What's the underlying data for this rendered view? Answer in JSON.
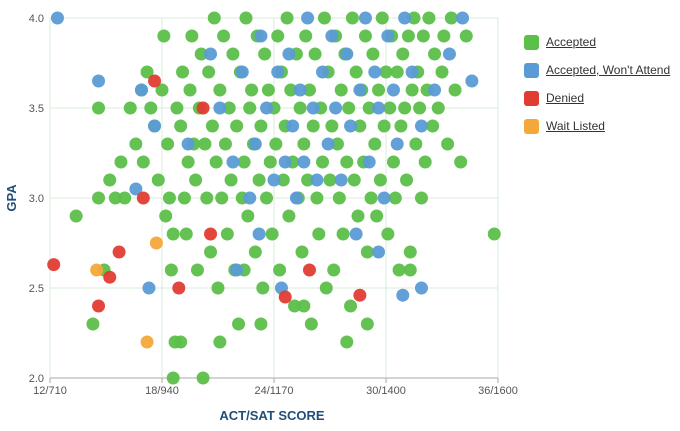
{
  "chart_data": {
    "type": "scatter",
    "xlabel": "ACT/SAT SCORE",
    "ylabel": "GPA",
    "x_ticks": [
      "12/710",
      "18/940",
      "24/1170",
      "30/1400",
      "36/1600"
    ],
    "x_tick_values": [
      12,
      18,
      24,
      30,
      36
    ],
    "xlim": [
      12,
      36
    ],
    "y_ticks": [
      "2.0",
      "2.5",
      "3.0",
      "3.5",
      "4.0"
    ],
    "y_tick_values": [
      2.0,
      2.5,
      3.0,
      3.5,
      4.0
    ],
    "ylim": [
      2.0,
      4.0
    ],
    "grid": true,
    "legend_position": "right",
    "series": [
      {
        "name": "Accepted",
        "color": "#5cbf4a",
        "points": [
          [
            13.4,
            2.9
          ],
          [
            14.3,
            2.3
          ],
          [
            14.6,
            3.5
          ],
          [
            14.6,
            3.0
          ],
          [
            14.9,
            2.6
          ],
          [
            15.2,
            3.1
          ],
          [
            15.5,
            3.0
          ],
          [
            15.8,
            3.2
          ],
          [
            16.0,
            3.0
          ],
          [
            16.3,
            3.5
          ],
          [
            16.6,
            3.3
          ],
          [
            16.9,
            3.6
          ],
          [
            17.0,
            3.2
          ],
          [
            17.2,
            3.7
          ],
          [
            17.4,
            3.5
          ],
          [
            17.6,
            3.4
          ],
          [
            17.8,
            3.1
          ],
          [
            18.0,
            3.6
          ],
          [
            18.1,
            3.9
          ],
          [
            18.2,
            2.9
          ],
          [
            18.3,
            3.3
          ],
          [
            18.4,
            3.0
          ],
          [
            18.5,
            2.6
          ],
          [
            18.6,
            2.8
          ],
          [
            18.7,
            2.2
          ],
          [
            18.8,
            3.5
          ],
          [
            19.0,
            3.4
          ],
          [
            19.1,
            3.7
          ],
          [
            19.2,
            3.0
          ],
          [
            19.3,
            2.8
          ],
          [
            19.4,
            3.2
          ],
          [
            19.5,
            3.6
          ],
          [
            19.6,
            3.9
          ],
          [
            19.7,
            3.3
          ],
          [
            19.8,
            3.1
          ],
          [
            19.9,
            2.6
          ],
          [
            20.0,
            3.5
          ],
          [
            20.1,
            3.8
          ],
          [
            20.2,
            2.0
          ],
          [
            20.3,
            3.3
          ],
          [
            20.4,
            3.0
          ],
          [
            20.5,
            3.7
          ],
          [
            20.6,
            2.7
          ],
          [
            20.7,
            3.4
          ],
          [
            20.8,
            4.0
          ],
          [
            20.9,
            3.2
          ],
          [
            21.0,
            2.5
          ],
          [
            21.1,
            3.6
          ],
          [
            21.2,
            3.0
          ],
          [
            21.3,
            3.9
          ],
          [
            21.4,
            3.3
          ],
          [
            21.5,
            2.8
          ],
          [
            21.6,
            3.5
          ],
          [
            21.7,
            3.1
          ],
          [
            21.8,
            3.8
          ],
          [
            21.9,
            2.6
          ],
          [
            22.0,
            3.4
          ],
          [
            22.1,
            2.3
          ],
          [
            22.2,
            3.7
          ],
          [
            22.3,
            3.0
          ],
          [
            22.4,
            3.2
          ],
          [
            22.5,
            4.0
          ],
          [
            22.6,
            2.9
          ],
          [
            22.7,
            3.5
          ],
          [
            22.8,
            3.6
          ],
          [
            22.9,
            3.3
          ],
          [
            23.0,
            2.7
          ],
          [
            23.1,
            3.9
          ],
          [
            23.2,
            3.1
          ],
          [
            23.3,
            3.4
          ],
          [
            23.4,
            2.5
          ],
          [
            23.5,
            3.8
          ],
          [
            23.6,
            3.0
          ],
          [
            23.7,
            3.6
          ],
          [
            23.8,
            3.2
          ],
          [
            23.9,
            2.8
          ],
          [
            24.0,
            3.5
          ],
          [
            24.1,
            3.3
          ],
          [
            24.2,
            3.9
          ],
          [
            24.3,
            2.6
          ],
          [
            24.4,
            3.7
          ],
          [
            24.5,
            3.1
          ],
          [
            24.6,
            3.4
          ],
          [
            24.7,
            4.0
          ],
          [
            24.8,
            2.9
          ],
          [
            24.9,
            3.6
          ],
          [
            25.0,
            3.2
          ],
          [
            25.1,
            2.4
          ],
          [
            25.2,
            3.8
          ],
          [
            25.3,
            3.0
          ],
          [
            25.4,
            3.5
          ],
          [
            25.5,
            2.7
          ],
          [
            25.6,
            3.3
          ],
          [
            25.7,
            3.9
          ],
          [
            25.8,
            3.1
          ],
          [
            25.9,
            3.6
          ],
          [
            26.0,
            2.3
          ],
          [
            26.1,
            3.4
          ],
          [
            26.2,
            3.8
          ],
          [
            26.3,
            3.0
          ],
          [
            26.4,
            2.8
          ],
          [
            26.5,
            3.5
          ],
          [
            26.6,
            3.2
          ],
          [
            26.7,
            4.0
          ],
          [
            26.8,
            2.5
          ],
          [
            26.9,
            3.7
          ],
          [
            27.0,
            3.1
          ],
          [
            27.1,
            3.4
          ],
          [
            27.2,
            2.6
          ],
          [
            27.3,
            3.9
          ],
          [
            27.4,
            3.3
          ],
          [
            27.5,
            3.0
          ],
          [
            27.6,
            3.6
          ],
          [
            27.7,
            2.8
          ],
          [
            27.8,
            3.8
          ],
          [
            27.9,
            3.2
          ],
          [
            28.0,
            3.5
          ],
          [
            28.1,
            2.4
          ],
          [
            28.2,
            4.0
          ],
          [
            28.3,
            3.1
          ],
          [
            28.4,
            3.7
          ],
          [
            28.5,
            2.9
          ],
          [
            28.6,
            3.4
          ],
          [
            28.7,
            3.6
          ],
          [
            28.8,
            3.2
          ],
          [
            28.9,
            3.9
          ],
          [
            29.0,
            2.7
          ],
          [
            29.1,
            3.5
          ],
          [
            29.2,
            3.0
          ],
          [
            29.3,
            3.8
          ],
          [
            29.4,
            3.3
          ],
          [
            29.5,
            2.9
          ],
          [
            29.6,
            3.6
          ],
          [
            29.7,
            3.1
          ],
          [
            29.8,
            4.0
          ],
          [
            29.9,
            3.4
          ],
          [
            30.0,
            3.7
          ],
          [
            30.1,
            2.8
          ],
          [
            30.2,
            3.5
          ],
          [
            30.3,
            3.9
          ],
          [
            30.4,
            3.2
          ],
          [
            30.5,
            3.0
          ],
          [
            30.6,
            3.7
          ],
          [
            30.7,
            2.6
          ],
          [
            30.8,
            3.4
          ],
          [
            30.9,
            3.8
          ],
          [
            31.0,
            3.5
          ],
          [
            31.1,
            3.1
          ],
          [
            31.2,
            3.9
          ],
          [
            31.3,
            2.7
          ],
          [
            31.4,
            3.6
          ],
          [
            31.5,
            4.0
          ],
          [
            31.6,
            3.3
          ],
          [
            31.7,
            3.7
          ],
          [
            31.8,
            3.5
          ],
          [
            31.9,
            3.0
          ],
          [
            32.0,
            3.9
          ],
          [
            32.1,
            3.2
          ],
          [
            32.2,
            3.6
          ],
          [
            32.3,
            4.0
          ],
          [
            32.5,
            3.4
          ],
          [
            32.6,
            3.8
          ],
          [
            32.8,
            3.5
          ],
          [
            33.0,
            3.7
          ],
          [
            33.1,
            3.9
          ],
          [
            33.3,
            3.3
          ],
          [
            33.5,
            4.0
          ],
          [
            33.7,
            3.6
          ],
          [
            34.0,
            3.2
          ],
          [
            34.3,
            3.9
          ],
          [
            35.8,
            2.8
          ],
          [
            19.0,
            2.2
          ],
          [
            18.6,
            2.0
          ],
          [
            21.1,
            2.2
          ],
          [
            22.4,
            2.6
          ],
          [
            23.3,
            2.3
          ],
          [
            25.6,
            2.4
          ],
          [
            27.9,
            2.2
          ],
          [
            29.0,
            2.3
          ],
          [
            31.3,
            2.6
          ]
        ]
      },
      {
        "name": "Accepted, Won't Attend",
        "color": "#5b9bd5",
        "points": [
          [
            12.4,
            4.0
          ],
          [
            14.6,
            3.65
          ],
          [
            16.6,
            3.05
          ],
          [
            16.9,
            3.6
          ],
          [
            17.3,
            2.5
          ],
          [
            17.6,
            3.4
          ],
          [
            19.4,
            3.3
          ],
          [
            20.6,
            3.8
          ],
          [
            21.1,
            3.5
          ],
          [
            21.8,
            3.2
          ],
          [
            22.0,
            2.6
          ],
          [
            22.3,
            3.7
          ],
          [
            22.7,
            3.0
          ],
          [
            23.0,
            3.3
          ],
          [
            23.2,
            2.8
          ],
          [
            23.3,
            3.9
          ],
          [
            23.6,
            3.5
          ],
          [
            24.0,
            3.1
          ],
          [
            24.2,
            3.7
          ],
          [
            24.4,
            2.5
          ],
          [
            24.6,
            3.2
          ],
          [
            24.8,
            3.8
          ],
          [
            25.0,
            3.4
          ],
          [
            25.2,
            3.0
          ],
          [
            25.4,
            3.6
          ],
          [
            25.6,
            3.2
          ],
          [
            25.8,
            4.0
          ],
          [
            26.1,
            3.5
          ],
          [
            26.3,
            3.1
          ],
          [
            26.6,
            3.7
          ],
          [
            26.9,
            3.3
          ],
          [
            27.1,
            3.9
          ],
          [
            27.3,
            3.5
          ],
          [
            27.6,
            3.1
          ],
          [
            27.9,
            3.8
          ],
          [
            28.1,
            3.4
          ],
          [
            28.4,
            2.8
          ],
          [
            28.6,
            3.6
          ],
          [
            28.9,
            4.0
          ],
          [
            29.1,
            3.2
          ],
          [
            29.4,
            3.7
          ],
          [
            29.6,
            3.5
          ],
          [
            29.9,
            3.0
          ],
          [
            30.1,
            3.9
          ],
          [
            30.4,
            3.6
          ],
          [
            30.6,
            3.3
          ],
          [
            31.0,
            4.0
          ],
          [
            31.4,
            3.7
          ],
          [
            31.9,
            3.4
          ],
          [
            32.6,
            3.6
          ],
          [
            33.4,
            3.8
          ],
          [
            34.1,
            4.0
          ],
          [
            34.6,
            3.65
          ],
          [
            31.9,
            2.5
          ],
          [
            30.9,
            2.46
          ],
          [
            29.6,
            2.7
          ]
        ]
      },
      {
        "name": "Denied",
        "color": "#e03c31",
        "points": [
          [
            12.2,
            2.63
          ],
          [
            14.6,
            2.4
          ],
          [
            15.2,
            2.56
          ],
          [
            15.7,
            2.7
          ],
          [
            17.0,
            3.0
          ],
          [
            17.6,
            3.65
          ],
          [
            18.9,
            2.5
          ],
          [
            20.2,
            3.5
          ],
          [
            20.6,
            2.8
          ],
          [
            24.6,
            2.45
          ],
          [
            25.9,
            2.6
          ],
          [
            28.6,
            2.46
          ]
        ]
      },
      {
        "name": "Wait Listed",
        "color": "#f5a83a",
        "points": [
          [
            14.5,
            2.6
          ],
          [
            17.2,
            2.2
          ],
          [
            17.7,
            2.75
          ]
        ]
      }
    ]
  }
}
